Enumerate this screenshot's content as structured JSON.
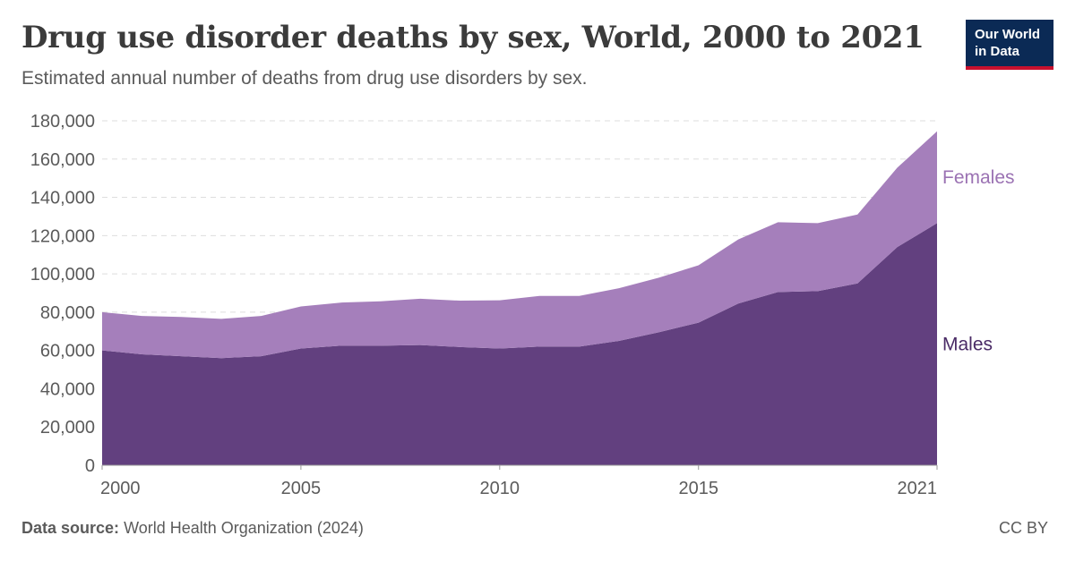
{
  "header": {
    "title": "Drug use disorder deaths by sex, World, 2000 to 2021",
    "subtitle": "Estimated annual number of deaths from drug use disorders by sex."
  },
  "logo": {
    "line1": "Our World",
    "line2": "in Data"
  },
  "footer": {
    "source_label": "Data source:",
    "source_text": "World Health Organization (2024)",
    "license": "CC BY"
  },
  "chart_data": {
    "type": "area",
    "stacked": true,
    "x": [
      2000,
      2001,
      2002,
      2003,
      2004,
      2005,
      2006,
      2007,
      2008,
      2009,
      2010,
      2011,
      2012,
      2013,
      2014,
      2015,
      2016,
      2017,
      2018,
      2019,
      2020,
      2021
    ],
    "series": [
      {
        "name": "Males",
        "color": "#62407f",
        "values": [
          60000,
          58000,
          57000,
          56000,
          57000,
          61000,
          62500,
          62500,
          62800,
          61800,
          61000,
          62000,
          62000,
          65000,
          69500,
          74500,
          84500,
          90500,
          91000,
          95000,
          114000,
          126500
        ]
      },
      {
        "name": "Females",
        "color": "#a57fbb",
        "values": [
          20000,
          20000,
          20500,
          20500,
          21000,
          22000,
          22500,
          23200,
          24200,
          24200,
          25200,
          26500,
          26500,
          27500,
          28500,
          30000,
          33500,
          36500,
          35500,
          36000,
          41500,
          48000
        ]
      }
    ],
    "ylim": [
      0,
      180000
    ],
    "yticks": [
      0,
      20000,
      40000,
      60000,
      80000,
      100000,
      120000,
      140000,
      160000,
      180000
    ],
    "ytick_labels": [
      "0",
      "20,000",
      "40,000",
      "60,000",
      "80,000",
      "100,000",
      "120,000",
      "140,000",
      "160,000",
      "180,000"
    ],
    "xticks": [
      2000,
      2005,
      2010,
      2015,
      2021
    ],
    "xtick_labels": [
      "2000",
      "2005",
      "2010",
      "2015",
      "2021"
    ],
    "grid": true,
    "legend": "right-edge inline labels",
    "label_colors": {
      "Males": "#4a2b66",
      "Females": "#9b72b3"
    }
  }
}
